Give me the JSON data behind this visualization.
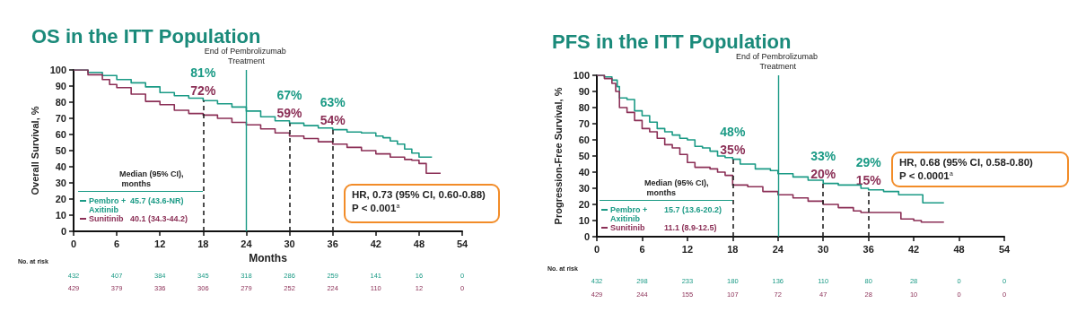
{
  "chart_data": [
    {
      "type": "step",
      "legend": "bottom left",
      "title": "OS in the ITT Population",
      "xlabel": "Months",
      "ylabel": "Overall Survival, %",
      "xlim": [
        0,
        54
      ],
      "xticks": [
        0,
        6,
        12,
        18,
        24,
        30,
        36,
        42,
        48,
        54
      ],
      "ylim": [
        0,
        100
      ],
      "yticks": [
        0,
        10,
        20,
        30,
        40,
        50,
        60,
        70,
        80,
        90,
        100
      ],
      "series": [
        {
          "name": "Pembro + Axitinib",
          "color": "#1a9a85",
          "x": [
            0,
            2,
            4,
            6,
            8,
            10,
            12,
            14,
            16,
            18,
            20,
            22,
            24,
            26,
            28,
            30,
            32,
            34,
            36,
            38,
            40,
            42,
            43,
            44,
            45,
            46,
            47,
            48,
            49.8
          ],
          "values": [
            100,
            98.5,
            96.5,
            94,
            92,
            89.5,
            86,
            84,
            82.5,
            81,
            79,
            77,
            74.5,
            71,
            68.5,
            67,
            65.5,
            64,
            63,
            61.5,
            61,
            59,
            58,
            56,
            54,
            51,
            48.5,
            46,
            46
          ]
        },
        {
          "name": "Sunitinib",
          "color": "#8b2f56",
          "x": [
            0,
            2,
            4,
            5,
            6,
            8,
            10,
            12,
            14,
            16,
            18,
            20,
            22,
            24,
            26,
            28,
            30,
            32,
            34,
            36,
            38,
            40,
            42,
            44,
            46,
            47,
            48,
            49,
            51
          ],
          "values": [
            100,
            97,
            94,
            91,
            89,
            85,
            80.5,
            78.5,
            75,
            73,
            72,
            70,
            67.5,
            66,
            63.5,
            61,
            59,
            57.5,
            55.5,
            54,
            52,
            50,
            48,
            46,
            44.5,
            44,
            42,
            36,
            36
          ]
        }
      ],
      "ref_lines": [
        {
          "axis": "x",
          "value": 18,
          "color": "#222222",
          "line_style": "dashed"
        },
        {
          "axis": "x",
          "value": 24,
          "color": "#1a9a85",
          "line_style": "solid",
          "label": "End of Pembrolizumab Treatment"
        },
        {
          "axis": "x",
          "value": 30,
          "color": "#222222",
          "line_style": "dashed"
        },
        {
          "axis": "x",
          "value": 36,
          "color": "#222222",
          "line_style": "dashed"
        }
      ],
      "annotations": [
        "Median (95% CI), months",
        "45.7 (43.6-NR)",
        "40.1 (34.3-44.2)",
        "HR, 0.73 (95% CI, 0.60-0.88)",
        "P < 0.001$^{a}$",
        "No. at risk",
        {
          "text": "81%",
          "x": 18,
          "y": 81
        },
        {
          "text": "72%",
          "x": 18,
          "y": 72
        },
        {
          "text": "67%",
          "x": 30,
          "y": 67
        },
        {
          "text": "59%",
          "x": 30,
          "y": 59
        },
        {
          "text": "63%",
          "x": 36,
          "y": 63
        },
        {
          "text": "54%",
          "x": 36,
          "y": 54
        },
        "432",
        "407",
        "384",
        "345",
        "318",
        "286",
        "259",
        "141",
        "16",
        "0",
        "429",
        "379",
        "336",
        "306",
        "279",
        "252",
        "224",
        "110",
        "12",
        "0"
      ]
    },
    {
      "type": "step",
      "legend": "bottom left",
      "title": "PFS in the ITT Population",
      "ylabel": "Progression-Free Survival, %",
      "xlim": [
        0,
        54
      ],
      "xticks": [
        0,
        6,
        12,
        18,
        24,
        30,
        36,
        42,
        48,
        54
      ],
      "ylim": [
        0,
        100
      ],
      "yticks": [
        0,
        10,
        20,
        30,
        40,
        50,
        60,
        70,
        80,
        90,
        100
      ],
      "series": [
        {
          "name": "Pembro + Axitinib",
          "color": "#1a9a85",
          "x": [
            0,
            1,
            2,
            2.7,
            3,
            4,
            5,
            6,
            7,
            8,
            9,
            10,
            11,
            12,
            13,
            14,
            15,
            16,
            17,
            18,
            19,
            21,
            23,
            24,
            26,
            28,
            30,
            32,
            35,
            36,
            38,
            40,
            43.2,
            46
          ],
          "values": [
            100,
            99,
            97,
            93,
            86,
            85,
            78,
            75,
            71,
            67,
            65,
            63,
            61,
            60,
            56,
            55,
            53,
            50,
            49,
            48,
            45,
            42,
            41,
            39,
            37,
            35,
            33,
            32,
            30,
            29,
            28,
            26,
            21,
            21
          ]
        },
        {
          "name": "Sunitinib",
          "color": "#8b2f56",
          "x": [
            0,
            1,
            2,
            2.5,
            3,
            4,
            5,
            6,
            7,
            8,
            9,
            10,
            11,
            12,
            13,
            15,
            16,
            17,
            18,
            20,
            22,
            24,
            26,
            28,
            30,
            32,
            34,
            35,
            40.3,
            42,
            43,
            46
          ],
          "values": [
            100,
            98,
            95,
            90,
            80,
            77,
            72,
            67,
            65,
            61,
            57,
            55,
            51,
            46,
            43,
            42,
            40,
            38,
            32,
            31,
            28,
            26,
            24,
            22,
            20,
            18,
            16,
            15,
            11,
            10,
            9,
            9
          ]
        }
      ],
      "ref_lines": [
        {
          "axis": "x",
          "value": 18,
          "color": "#222222",
          "line_style": "dashed"
        },
        {
          "axis": "x",
          "value": 24,
          "color": "#1a9a85",
          "line_style": "solid",
          "label": "End of Pembrolizumab Treatment"
        },
        {
          "axis": "x",
          "value": 30,
          "color": "#222222",
          "line_style": "dashed"
        },
        {
          "axis": "x",
          "value": 36,
          "color": "#222222",
          "line_style": "dashed"
        }
      ],
      "annotations": [
        "Median (95% CI), months",
        "15.7 (13.6-20.2)",
        "11.1 (8.9-12.5)",
        "HR, 0.68 (95% CI, 0.58-0.80)",
        "P < 0.0001$^{a}$",
        "No. at risk",
        {
          "text": "48%",
          "x": 18,
          "y": 48
        },
        {
          "text": "35%",
          "x": 18,
          "y": 35
        },
        {
          "text": "33%",
          "x": 30,
          "y": 33
        },
        {
          "text": "20%",
          "x": 30,
          "y": 20
        },
        {
          "text": "29%",
          "x": 36,
          "y": 29
        },
        {
          "text": "15%",
          "x": 36,
          "y": 15
        },
        "432",
        "298",
        "233",
        "180",
        "136",
        "110",
        "80",
        "28",
        "0",
        "0",
        "429",
        "244",
        "155",
        "107",
        "72",
        "47",
        "28",
        "10",
        "0",
        "0"
      ]
    }
  ]
}
